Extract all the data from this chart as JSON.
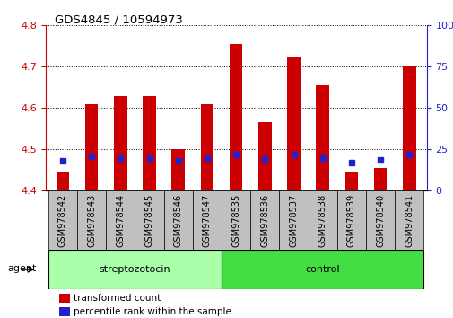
{
  "title": "GDS4845 / 10594973",
  "samples": [
    "GSM978542",
    "GSM978543",
    "GSM978544",
    "GSM978545",
    "GSM978546",
    "GSM978547",
    "GSM978535",
    "GSM978536",
    "GSM978537",
    "GSM978538",
    "GSM978539",
    "GSM978540",
    "GSM978541"
  ],
  "red_values": [
    4.445,
    4.61,
    4.63,
    4.63,
    4.5,
    4.61,
    4.755,
    4.565,
    4.725,
    4.655,
    4.445,
    4.455,
    4.7
  ],
  "blue_values": [
    4.473,
    4.483,
    4.48,
    4.48,
    4.472,
    4.48,
    4.487,
    4.478,
    4.487,
    4.48,
    4.468,
    4.475,
    4.487
  ],
  "ylim_left": [
    4.4,
    4.8
  ],
  "ylim_right": [
    0,
    100
  ],
  "yticks_left": [
    4.4,
    4.5,
    4.6,
    4.7,
    4.8
  ],
  "yticks_right": [
    0,
    25,
    50,
    75,
    100
  ],
  "group_strep": {
    "label": "streptozotocin",
    "start": 0,
    "end": 5,
    "color": "#AAFFAA"
  },
  "group_ctrl": {
    "label": "control",
    "start": 6,
    "end": 12,
    "color": "#44DD44"
  },
  "agent_label": "agent",
  "bar_color": "#CC0000",
  "blue_color": "#2222CC",
  "bg_color": "#FFFFFF",
  "tick_area_color": "#C0C0C0",
  "left_axis_color": "#CC0000",
  "right_axis_color": "#2222CC",
  "legend": [
    {
      "color": "#CC0000",
      "label": "transformed count"
    },
    {
      "color": "#2222CC",
      "label": "percentile rank within the sample"
    }
  ],
  "bar_width": 0.45,
  "blue_marker_size": 5
}
